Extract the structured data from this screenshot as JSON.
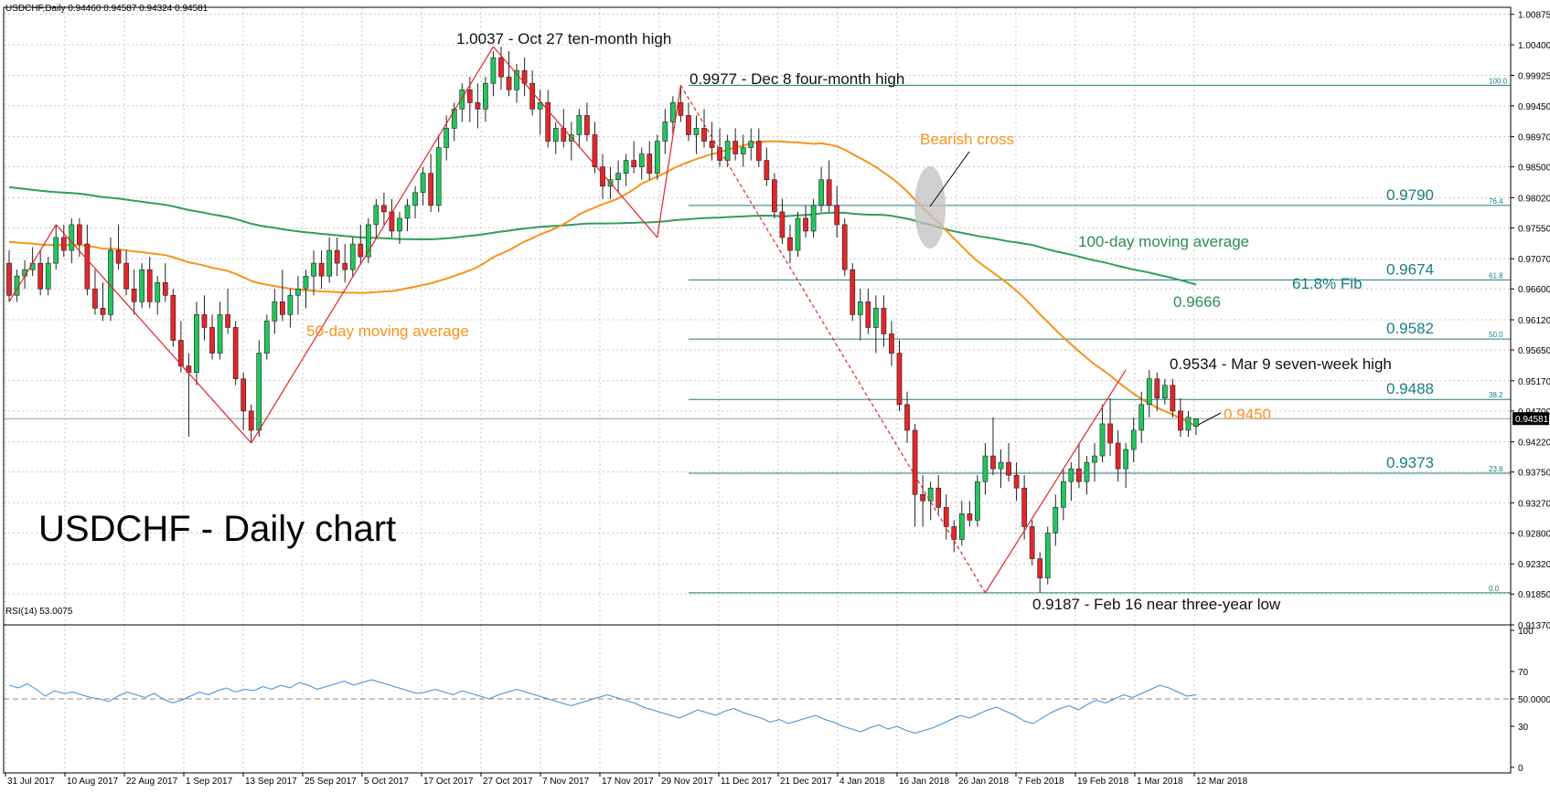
{
  "header": {
    "symbol_info": "USDCHF,Daily  0.94460 0.94587 0.94324 0.94581",
    "rsi_info": "RSI(14) 53.0075"
  },
  "title": "USDCHF - Daily chart",
  "colors": {
    "bull": "#22c55e",
    "bear": "#e3262b",
    "ma50": "#f7931e",
    "ma100": "#2f9e5b",
    "fib": "#1b7d7d",
    "rsi": "#3a8fd9",
    "zigzag": "#e3262b"
  },
  "annotations": {
    "oct27": "1.0037 - Oct 27 ten-month high",
    "dec8": "0.9977 - Dec 8 four-month high",
    "bearish": "Bearish cross",
    "ma100_label": "100-day moving average",
    "ma50_label": "50-day moving average",
    "ma100_val": "0.9666",
    "fib618_label": "61.8% Fib",
    "mar9": "0.9534 - Mar 9 seven-week high",
    "ma50_val": "0.9450",
    "feb16": "0.9187 - Feb 16 near three-year low"
  },
  "fib_levels": [
    {
      "pct": "100.0",
      "value": 0.9977,
      "label": ""
    },
    {
      "pct": "76.4",
      "value": 0.979,
      "label": "0.9790"
    },
    {
      "pct": "61.8",
      "value": 0.9674,
      "label": "0.9674"
    },
    {
      "pct": "50.0",
      "value": 0.9582,
      "label": "0.9582"
    },
    {
      "pct": "38.2",
      "value": 0.9488,
      "label": "0.9488"
    },
    {
      "pct": "23.6",
      "value": 0.9373,
      "label": "0.9373"
    },
    {
      "pct": "0.0",
      "value": 0.9187,
      "label": ""
    }
  ],
  "price_axis_labels": [
    "1.00875",
    "1.00400",
    "0.99925",
    "0.99450",
    "0.98970",
    "0.98500",
    "0.98020",
    "0.97550",
    "0.97070",
    "0.96600",
    "0.96120",
    "0.95650",
    "0.95170",
    "0.94700",
    "0.94220",
    "0.93750",
    "0.93270",
    "0.92800",
    "0.92320",
    "0.91850",
    "0.91370"
  ],
  "current_price": "0.94581",
  "rsi_axis_labels": [
    "100",
    "70",
    "50.0000",
    "30",
    "0"
  ],
  "date_labels": [
    "31 Jul 2017",
    "10 Aug 2017",
    "22 Aug 2017",
    "1 Sep 2017",
    "13 Sep 2017",
    "25 Sep 2017",
    "5 Oct 2017",
    "17 Oct 2017",
    "27 Oct 2017",
    "7 Nov 2017",
    "17 Nov 2017",
    "29 Nov 2017",
    "11 Dec 2017",
    "21 Dec 2017",
    "4 Jan 2018",
    "16 Jan 2018",
    "26 Jan 2018",
    "7 Feb 2018",
    "19 Feb 2018",
    "1 Mar 2018",
    "12 Mar 2018"
  ],
  "chart_data": {
    "type": "candlestick",
    "series_name": "USDCHF",
    "timeframe": "Daily",
    "ylim": [
      0.9137,
      1.0087
    ],
    "rsi_ylim": [
      0,
      100
    ],
    "key_points": [
      {
        "date": "27 Oct 2017",
        "value": 1.0037
      },
      {
        "date": "8 Dec 2017",
        "value": 0.9977
      },
      {
        "date": "16 Feb 2018",
        "value": 0.9187
      },
      {
        "date": "9 Mar 2018",
        "value": 0.9534
      }
    ],
    "ohlc": [
      [
        0.97,
        0.972,
        0.964,
        0.965
      ],
      [
        0.965,
        0.969,
        0.964,
        0.968
      ],
      [
        0.968,
        0.9705,
        0.966,
        0.969
      ],
      [
        0.969,
        0.9725,
        0.968,
        0.97
      ],
      [
        0.97,
        0.972,
        0.965,
        0.966
      ],
      [
        0.966,
        0.971,
        0.965,
        0.97
      ],
      [
        0.97,
        0.976,
        0.969,
        0.974
      ],
      [
        0.974,
        0.976,
        0.971,
        0.972
      ],
      [
        0.972,
        0.977,
        0.97,
        0.976
      ],
      [
        0.976,
        0.977,
        0.971,
        0.973
      ],
      [
        0.973,
        0.976,
        0.965,
        0.966
      ],
      [
        0.966,
        0.969,
        0.962,
        0.963
      ],
      [
        0.963,
        0.967,
        0.961,
        0.962
      ],
      [
        0.962,
        0.974,
        0.961,
        0.972
      ],
      [
        0.972,
        0.976,
        0.969,
        0.97
      ],
      [
        0.97,
        0.972,
        0.965,
        0.966
      ],
      [
        0.966,
        0.969,
        0.962,
        0.964
      ],
      [
        0.964,
        0.97,
        0.963,
        0.969
      ],
      [
        0.969,
        0.971,
        0.963,
        0.964
      ],
      [
        0.964,
        0.968,
        0.962,
        0.967
      ],
      [
        0.967,
        0.97,
        0.964,
        0.965
      ],
      [
        0.965,
        0.966,
        0.957,
        0.958
      ],
      [
        0.958,
        0.961,
        0.953,
        0.954
      ],
      [
        0.954,
        0.956,
        0.943,
        0.953
      ],
      [
        0.953,
        0.964,
        0.951,
        0.962
      ],
      [
        0.962,
        0.965,
        0.958,
        0.96
      ],
      [
        0.96,
        0.962,
        0.955,
        0.956
      ],
      [
        0.956,
        0.964,
        0.955,
        0.962
      ],
      [
        0.962,
        0.966,
        0.959,
        0.96
      ],
      [
        0.96,
        0.961,
        0.951,
        0.952
      ],
      [
        0.952,
        0.953,
        0.944,
        0.947
      ],
      [
        0.947,
        0.948,
        0.942,
        0.944
      ],
      [
        0.944,
        0.958,
        0.943,
        0.956
      ],
      [
        0.956,
        0.962,
        0.955,
        0.961
      ],
      [
        0.961,
        0.966,
        0.959,
        0.964
      ],
      [
        0.964,
        0.969,
        0.961,
        0.962
      ],
      [
        0.962,
        0.966,
        0.96,
        0.965
      ],
      [
        0.965,
        0.968,
        0.962,
        0.966
      ],
      [
        0.966,
        0.969,
        0.963,
        0.968
      ],
      [
        0.968,
        0.972,
        0.965,
        0.97
      ],
      [
        0.97,
        0.972,
        0.966,
        0.968
      ],
      [
        0.968,
        0.974,
        0.967,
        0.972
      ],
      [
        0.972,
        0.974,
        0.968,
        0.97
      ],
      [
        0.97,
        0.973,
        0.967,
        0.969
      ],
      [
        0.969,
        0.974,
        0.968,
        0.973
      ],
      [
        0.973,
        0.976,
        0.97,
        0.971
      ],
      [
        0.971,
        0.977,
        0.97,
        0.976
      ],
      [
        0.976,
        0.98,
        0.974,
        0.979
      ],
      [
        0.979,
        0.981,
        0.976,
        0.978
      ],
      [
        0.978,
        0.98,
        0.974,
        0.975
      ],
      [
        0.975,
        0.978,
        0.973,
        0.977
      ],
      [
        0.977,
        0.98,
        0.975,
        0.979
      ],
      [
        0.979,
        0.982,
        0.977,
        0.981
      ],
      [
        0.981,
        0.985,
        0.979,
        0.984
      ],
      [
        0.984,
        0.987,
        0.978,
        0.979
      ],
      [
        0.979,
        0.99,
        0.978,
        0.988
      ],
      [
        0.988,
        0.993,
        0.986,
        0.991
      ],
      [
        0.991,
        0.995,
        0.989,
        0.994
      ],
      [
        0.994,
        0.998,
        0.992,
        0.997
      ],
      [
        0.997,
        0.999,
        0.992,
        0.995
      ],
      [
        0.995,
        0.998,
        0.991,
        0.994
      ],
      [
        0.994,
        0.999,
        0.992,
        0.998
      ],
      [
        0.998,
        1.003,
        0.996,
        1.002
      ],
      [
        1.002,
        1.0037,
        0.997,
        0.999
      ],
      [
        0.999,
        1.003,
        0.996,
        0.997
      ],
      [
        0.997,
        1.001,
        0.995,
        1.0
      ],
      [
        1.0,
        1.002,
        0.996,
        0.998
      ],
      [
        0.998,
        1.0,
        0.993,
        0.994
      ],
      [
        0.994,
        0.997,
        0.99,
        0.995
      ],
      [
        0.995,
        0.997,
        0.988,
        0.989
      ],
      [
        0.989,
        0.992,
        0.987,
        0.991
      ],
      [
        0.991,
        0.994,
        0.988,
        0.989
      ],
      [
        0.989,
        0.992,
        0.986,
        0.99
      ],
      [
        0.99,
        0.994,
        0.988,
        0.993
      ],
      [
        0.993,
        0.995,
        0.989,
        0.99
      ],
      [
        0.99,
        0.992,
        0.984,
        0.985
      ],
      [
        0.985,
        0.987,
        0.98,
        0.982
      ],
      [
        0.982,
        0.985,
        0.98,
        0.983
      ],
      [
        0.983,
        0.986,
        0.981,
        0.984
      ],
      [
        0.984,
        0.987,
        0.982,
        0.986
      ],
      [
        0.986,
        0.989,
        0.984,
        0.985
      ],
      [
        0.985,
        0.988,
        0.983,
        0.987
      ],
      [
        0.987,
        0.989,
        0.983,
        0.984
      ],
      [
        0.984,
        0.99,
        0.983,
        0.989
      ],
      [
        0.989,
        0.994,
        0.987,
        0.992
      ],
      [
        0.992,
        0.996,
        0.99,
        0.995
      ],
      [
        0.995,
        0.9977,
        0.992,
        0.993
      ],
      [
        0.993,
        0.995,
        0.989,
        0.99
      ],
      [
        0.99,
        0.993,
        0.987,
        0.991
      ],
      [
        0.991,
        0.994,
        0.988,
        0.989
      ],
      [
        0.989,
        0.992,
        0.986,
        0.988
      ],
      [
        0.988,
        0.991,
        0.985,
        0.986
      ],
      [
        0.986,
        0.99,
        0.985,
        0.989
      ],
      [
        0.989,
        0.991,
        0.986,
        0.987
      ],
      [
        0.987,
        0.99,
        0.985,
        0.988
      ],
      [
        0.988,
        0.991,
        0.986,
        0.989
      ],
      [
        0.989,
        0.991,
        0.985,
        0.986
      ],
      [
        0.986,
        0.988,
        0.982,
        0.983
      ],
      [
        0.983,
        0.984,
        0.977,
        0.978
      ],
      [
        0.978,
        0.98,
        0.973,
        0.974
      ],
      [
        0.974,
        0.976,
        0.97,
        0.972
      ],
      [
        0.972,
        0.978,
        0.971,
        0.977
      ],
      [
        0.977,
        0.979,
        0.974,
        0.975
      ],
      [
        0.975,
        0.98,
        0.974,
        0.979
      ],
      [
        0.979,
        0.985,
        0.978,
        0.983
      ],
      [
        0.983,
        0.986,
        0.978,
        0.979
      ],
      [
        0.979,
        0.982,
        0.974,
        0.976
      ],
      [
        0.976,
        0.977,
        0.968,
        0.969
      ],
      [
        0.969,
        0.97,
        0.961,
        0.962
      ],
      [
        0.962,
        0.966,
        0.958,
        0.964
      ],
      [
        0.964,
        0.966,
        0.959,
        0.96
      ],
      [
        0.96,
        0.965,
        0.956,
        0.963
      ],
      [
        0.963,
        0.965,
        0.957,
        0.959
      ],
      [
        0.959,
        0.961,
        0.954,
        0.956
      ],
      [
        0.956,
        0.958,
        0.947,
        0.948
      ],
      [
        0.948,
        0.95,
        0.942,
        0.944
      ],
      [
        0.944,
        0.945,
        0.929,
        0.934
      ],
      [
        0.934,
        0.937,
        0.929,
        0.933
      ],
      [
        0.933,
        0.936,
        0.93,
        0.935
      ],
      [
        0.935,
        0.937,
        0.931,
        0.932
      ],
      [
        0.932,
        0.934,
        0.927,
        0.929
      ],
      [
        0.929,
        0.93,
        0.925,
        0.927
      ],
      [
        0.927,
        0.933,
        0.926,
        0.931
      ],
      [
        0.931,
        0.933,
        0.929,
        0.93
      ],
      [
        0.93,
        0.937,
        0.929,
        0.936
      ],
      [
        0.936,
        0.942,
        0.934,
        0.94
      ],
      [
        0.94,
        0.946,
        0.937,
        0.938
      ],
      [
        0.938,
        0.941,
        0.935,
        0.939
      ],
      [
        0.939,
        0.942,
        0.936,
        0.937
      ],
      [
        0.937,
        0.939,
        0.933,
        0.935
      ],
      [
        0.935,
        0.937,
        0.927,
        0.929
      ],
      [
        0.929,
        0.93,
        0.923,
        0.924
      ],
      [
        0.924,
        0.925,
        0.9187,
        0.921
      ],
      [
        0.921,
        0.929,
        0.92,
        0.928
      ],
      [
        0.928,
        0.934,
        0.926,
        0.932
      ],
      [
        0.932,
        0.938,
        0.93,
        0.936
      ],
      [
        0.936,
        0.939,
        0.933,
        0.938
      ],
      [
        0.938,
        0.942,
        0.935,
        0.936
      ],
      [
        0.936,
        0.94,
        0.934,
        0.939
      ],
      [
        0.939,
        0.942,
        0.936,
        0.94
      ],
      [
        0.94,
        0.948,
        0.939,
        0.945
      ],
      [
        0.945,
        0.949,
        0.94,
        0.942
      ],
      [
        0.942,
        0.944,
        0.936,
        0.938
      ],
      [
        0.938,
        0.942,
        0.935,
        0.941
      ],
      [
        0.941,
        0.946,
        0.939,
        0.944
      ],
      [
        0.944,
        0.95,
        0.942,
        0.948
      ],
      [
        0.948,
        0.9534,
        0.946,
        0.952
      ],
      [
        0.952,
        0.953,
        0.947,
        0.949
      ],
      [
        0.949,
        0.952,
        0.948,
        0.951
      ],
      [
        0.951,
        0.952,
        0.946,
        0.947
      ],
      [
        0.947,
        0.949,
        0.943,
        0.944
      ],
      [
        0.944,
        0.947,
        0.943,
        0.946
      ],
      [
        0.9446,
        0.94587,
        0.94324,
        0.94581
      ]
    ],
    "rsi": [
      60,
      58,
      61,
      57,
      52,
      56,
      54,
      55,
      53,
      51,
      50,
      48,
      52,
      55,
      53,
      51,
      54,
      50,
      47,
      49,
      52,
      55,
      53,
      56,
      58,
      55,
      57,
      56,
      59,
      57,
      60,
      58,
      62,
      60,
      57,
      59,
      61,
      63,
      60,
      62,
      64,
      62,
      60,
      58,
      56,
      54,
      55,
      57,
      55,
      53,
      56,
      54,
      52,
      50,
      53,
      55,
      57,
      55,
      53,
      51,
      49,
      47,
      45,
      47,
      49,
      51,
      53,
      51,
      49,
      47,
      44,
      42,
      40,
      38,
      36,
      39,
      42,
      40,
      38,
      41,
      43,
      40,
      38,
      36,
      33,
      35,
      32,
      34,
      36,
      38,
      35,
      33,
      30,
      28,
      26,
      29,
      31,
      28,
      30,
      27,
      25,
      27,
      29,
      32,
      35,
      38,
      36,
      39,
      42,
      44,
      41,
      38,
      34,
      32,
      36,
      40,
      43,
      45,
      42,
      46,
      49,
      47,
      50,
      53,
      51,
      54,
      57,
      60,
      58,
      55,
      52,
      53
    ]
  }
}
